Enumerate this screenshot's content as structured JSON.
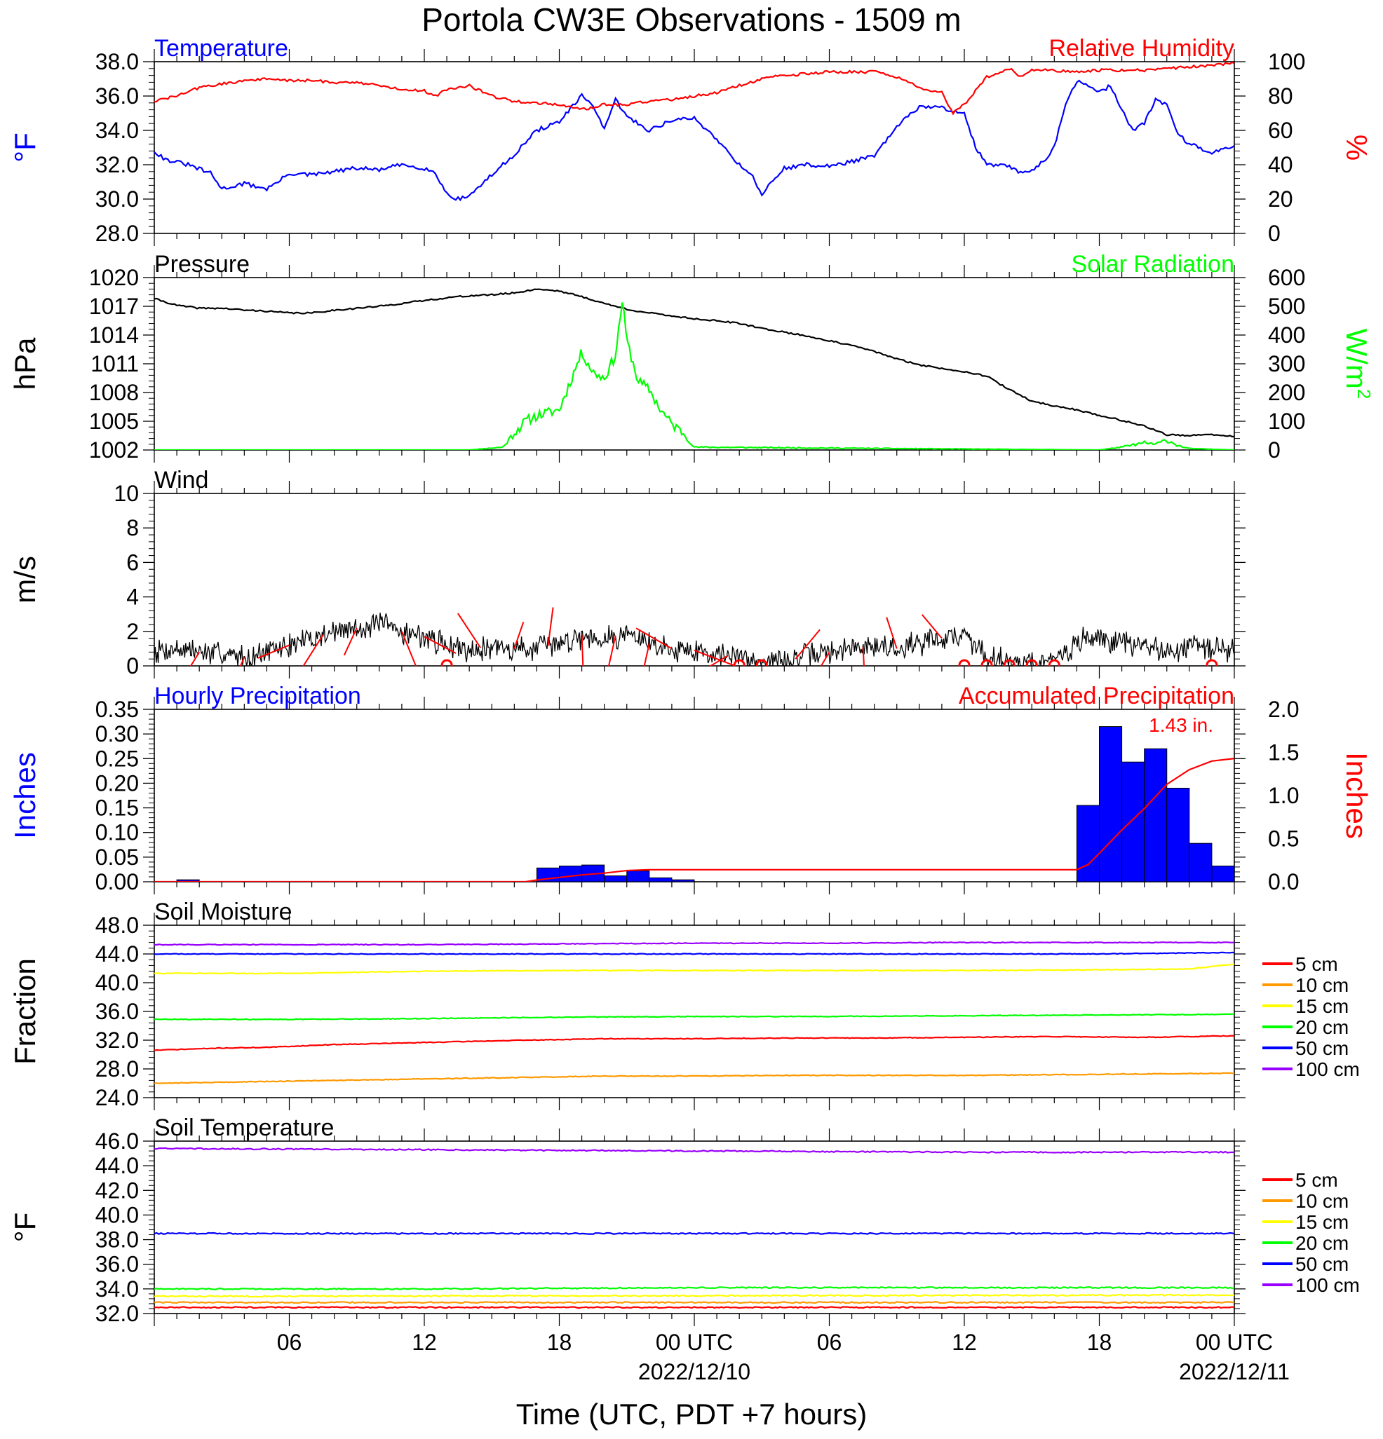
{
  "title": "Portola CW3E Observations - 1509 m",
  "xlabel": "Time (UTC, PDT +7 hours)",
  "x_axis": {
    "range_hours": [
      0,
      48
    ],
    "tick_hours": [
      6,
      12,
      18,
      24,
      30,
      36,
      42,
      48
    ],
    "tick_labels": [
      "06",
      "12",
      "18",
      "00 UTC",
      "06",
      "12",
      "18",
      "00 UTC"
    ],
    "date_labels": [
      {
        "hour": 24,
        "text": "2022/12/10"
      },
      {
        "hour": 48,
        "text": "2022/12/11"
      }
    ]
  },
  "colors": {
    "blue": "#0000ff",
    "red": "#ff0000",
    "green": "#00ff00",
    "black": "#000000",
    "orange": "#ff9900",
    "yellow": "#ffff00",
    "purple": "#9900ff"
  },
  "chart_data": [
    {
      "type": "line",
      "panel": "temperature-humidity",
      "left_title": "Temperature",
      "right_title": "Relative Humidity",
      "ylabel": "°F",
      "ylabel_right": "%",
      "ylim": [
        28,
        38
      ],
      "ylim_right": [
        0,
        100
      ],
      "yticks": [
        "28.0",
        "30.0",
        "32.0",
        "34.0",
        "36.0",
        "38.0"
      ],
      "yticks_right": [
        "0",
        "20",
        "40",
        "60",
        "80",
        "100"
      ],
      "series": [
        {
          "name": "Temperature",
          "color": "#0000ff",
          "axis": "left",
          "x": [
            0,
            0.5,
            1.5,
            2.5,
            3,
            4,
            5,
            5.5,
            6,
            7,
            8,
            9,
            10,
            11,
            12,
            12.5,
            13,
            13.5,
            14,
            15,
            16,
            17,
            18,
            19,
            19.5,
            20,
            20.5,
            21,
            22,
            23,
            24,
            25,
            26,
            26.5,
            27,
            28,
            29,
            30,
            31,
            32,
            33,
            34,
            35,
            36,
            36.5,
            37,
            38,
            38.5,
            39,
            39.5,
            40,
            40.5,
            41,
            42,
            42.5,
            43,
            43.5,
            44,
            44.5,
            45,
            45.5,
            46,
            46.5,
            47,
            47.5,
            48
          ],
          "y": [
            32.8,
            32.3,
            32.0,
            31.5,
            30.6,
            30.9,
            30.6,
            31.0,
            31.5,
            31.4,
            31.6,
            31.8,
            31.7,
            32.0,
            31.8,
            31.5,
            30.3,
            30.0,
            30.2,
            31.4,
            32.6,
            34.0,
            34.5,
            36.0,
            35.5,
            34.0,
            35.8,
            34.8,
            34.0,
            34.6,
            34.7,
            33.5,
            32.0,
            31.5,
            30.3,
            31.8,
            32.0,
            31.9,
            32.2,
            32.5,
            34.2,
            35.4,
            35.3,
            35.0,
            33.0,
            32.0,
            31.9,
            31.5,
            31.7,
            32.2,
            33.0,
            35.5,
            36.9,
            36.2,
            36.6,
            35.2,
            34.0,
            34.4,
            35.8,
            35.5,
            33.8,
            33.2,
            33.0,
            32.6,
            33.0,
            33.1
          ]
        },
        {
          "name": "Relative Humidity",
          "color": "#ff0000",
          "axis": "right",
          "x": [
            0,
            1,
            2,
            3,
            4,
            5,
            6,
            7,
            8,
            9,
            10,
            11,
            12,
            12.5,
            13,
            14,
            15,
            16,
            17,
            18,
            19,
            20,
            21,
            22,
            23,
            24,
            25,
            26,
            27,
            28,
            29,
            30,
            31,
            32,
            33,
            34,
            35,
            35.5,
            36,
            37,
            38,
            38.5,
            39,
            40,
            41,
            42,
            43,
            44,
            45,
            46,
            47,
            48
          ],
          "y": [
            77,
            80,
            85,
            87,
            89,
            90,
            89,
            89,
            88,
            88,
            86,
            84,
            83,
            80,
            84,
            86,
            80,
            77,
            76,
            75,
            72,
            75,
            75,
            77,
            78,
            80,
            82,
            86,
            90,
            92,
            93,
            94,
            94,
            94,
            91,
            85,
            82,
            70,
            75,
            91,
            96,
            91,
            95,
            95,
            94,
            95,
            95,
            95,
            96,
            97,
            98,
            99
          ]
        }
      ]
    },
    {
      "type": "line",
      "panel": "pressure-solar",
      "left_title": "Pressure",
      "right_title": "Solar Radiation",
      "ylabel": "hPa",
      "ylabel_right": "W/m",
      "ylabel_right_sup": "2",
      "ylim": [
        1002,
        1020
      ],
      "ylim_right": [
        0,
        600
      ],
      "yticks": [
        "1002",
        "1005",
        "1008",
        "1011",
        "1014",
        "1017",
        "1020"
      ],
      "yticks_right": [
        "0",
        "100",
        "200",
        "300",
        "400",
        "500",
        "600"
      ],
      "series": [
        {
          "name": "Pressure",
          "color": "#000000",
          "axis": "left",
          "x": [
            0,
            1,
            2,
            3,
            4,
            5,
            6,
            7,
            8,
            9,
            10,
            11,
            12,
            13,
            14,
            15,
            16,
            17,
            18,
            19,
            20,
            21,
            22,
            23,
            24,
            25,
            26,
            27,
            28,
            29,
            30,
            31,
            32,
            33,
            34,
            35,
            36,
            37,
            38,
            39,
            40,
            41,
            42,
            43,
            44,
            45,
            46,
            47,
            48
          ],
          "y": [
            1017.8,
            1017.1,
            1016.8,
            1016.8,
            1016.6,
            1016.5,
            1016.3,
            1016.3,
            1016.6,
            1016.8,
            1017.0,
            1017.3,
            1017.6,
            1017.9,
            1018.1,
            1018.2,
            1018.4,
            1018.8,
            1018.6,
            1018.0,
            1017.3,
            1016.7,
            1016.3,
            1016.0,
            1015.7,
            1015.5,
            1015.2,
            1014.7,
            1014.3,
            1013.9,
            1013.4,
            1012.9,
            1012.3,
            1011.5,
            1010.9,
            1010.5,
            1010.2,
            1009.7,
            1008.3,
            1007.1,
            1006.6,
            1006.2,
            1005.6,
            1005.1,
            1004.5,
            1003.6,
            1003.5,
            1003.6,
            1003.4
          ]
        },
        {
          "name": "Solar Radiation",
          "color": "#00ff00",
          "axis": "right",
          "x": [
            0,
            14,
            15.5,
            16,
            16.5,
            17,
            17.5,
            18,
            18.5,
            19,
            19.5,
            20,
            20.5,
            20.8,
            21,
            21.5,
            22,
            22.5,
            23,
            23.5,
            24,
            42,
            43,
            44,
            44.5,
            45,
            45.5,
            46,
            48
          ],
          "y": [
            0,
            0,
            10,
            60,
            100,
            120,
            130,
            140,
            240,
            340,
            270,
            250,
            330,
            520,
            380,
            240,
            210,
            140,
            90,
            60,
            10,
            0,
            10,
            25,
            20,
            35,
            15,
            5,
            0
          ]
        }
      ]
    },
    {
      "type": "line",
      "panel": "wind",
      "left_title": "Wind",
      "ylabel": "m/s",
      "ylim": [
        0,
        10
      ],
      "yticks": [
        "0",
        "2",
        "4",
        "6",
        "8",
        "10"
      ],
      "series": [
        {
          "name": "Wind",
          "color": "#000000",
          "axis": "left",
          "x": [
            0,
            1,
            2,
            3,
            4,
            5,
            6,
            7,
            8,
            9,
            10,
            11,
            12,
            13,
            14,
            15,
            16,
            17,
            18,
            19,
            20,
            21,
            22,
            23,
            24,
            25,
            26,
            27,
            28,
            29,
            30,
            31,
            32,
            33,
            34,
            35,
            36,
            37,
            38,
            39,
            40,
            41,
            42,
            43,
            44,
            45,
            46,
            47,
            48
          ],
          "y": [
            0.9,
            1.0,
            0.8,
            0.7,
            0.5,
            0.8,
            1.2,
            1.6,
            2.0,
            2.2,
            2.4,
            2.0,
            1.7,
            1.2,
            1.0,
            1.1,
            1.0,
            1.0,
            1.3,
            1.8,
            1.6,
            1.9,
            1.3,
            1.0,
            0.9,
            0.7,
            0.5,
            0.3,
            0.2,
            0.6,
            0.8,
            1.0,
            1.2,
            1.0,
            1.4,
            1.6,
            1.8,
            0.6,
            0.3,
            0.2,
            0.2,
            1.4,
            1.6,
            1.3,
            1.2,
            0.8,
            1.2,
            1.0,
            0.9
          ]
        }
      ],
      "wind_barb_hours": [
        2,
        4,
        6,
        7.5,
        9,
        11,
        12,
        14.5,
        16,
        17.5,
        19,
        20.5,
        22,
        23,
        24,
        25.5,
        28.5,
        30,
        31.5,
        33,
        35
      ],
      "calm_hours": [
        13,
        26,
        27,
        36,
        37,
        38,
        39,
        40,
        47
      ]
    },
    {
      "type": "bar",
      "panel": "precipitation",
      "left_title": "Hourly Precipitation",
      "right_title": "Accumulated Precipitation",
      "annotation": "1.43 in.",
      "ylabel": "Inches",
      "ylabel_right": "Inches",
      "ylim": [
        0,
        0.35
      ],
      "ylim_right": [
        0,
        2.0
      ],
      "yticks": [
        "0.00",
        "0.05",
        "0.10",
        "0.15",
        "0.20",
        "0.25",
        "0.30",
        "0.35"
      ],
      "yticks_right": [
        "0.0",
        "0.5",
        "1.0",
        "1.5",
        "2.0"
      ],
      "bars": {
        "name": "Hourly Precipitation",
        "color": "#0000ff",
        "start_hours": [
          1,
          17,
          18,
          19,
          20,
          21,
          22,
          23,
          41,
          42,
          43,
          44,
          45,
          46,
          47
        ],
        "values": [
          0.004,
          0.028,
          0.032,
          0.034,
          0.012,
          0.022,
          0.008,
          0.004,
          0.155,
          0.315,
          0.243,
          0.27,
          0.19,
          0.078,
          0.032
        ]
      },
      "series": [
        {
          "name": "Accumulated Precipitation",
          "color": "#ff0000",
          "axis": "right",
          "x": [
            0,
            16.5,
            17,
            18,
            19,
            20,
            21,
            22,
            23,
            24,
            41,
            41.5,
            42,
            43,
            44,
            45,
            46,
            47,
            48
          ],
          "y": [
            0.0,
            0.0,
            0.02,
            0.05,
            0.08,
            0.1,
            0.13,
            0.14,
            0.14,
            0.14,
            0.14,
            0.2,
            0.33,
            0.6,
            0.85,
            1.13,
            1.3,
            1.4,
            1.43
          ]
        }
      ]
    },
    {
      "type": "line",
      "panel": "soil-moisture",
      "left_title": "Soil Moisture",
      "ylabel": "Fraction",
      "ylim": [
        24,
        48
      ],
      "yticks": [
        "24.0",
        "28.0",
        "32.0",
        "36.0",
        "40.0",
        "44.0",
        "48.0"
      ],
      "legend": [
        "5 cm",
        "10 cm",
        "15 cm",
        "20 cm",
        "50 cm",
        "100 cm"
      ],
      "series": [
        {
          "name": "5 cm",
          "color": "#ff0000",
          "x": [
            0,
            3,
            5,
            8,
            11,
            15,
            20,
            24,
            28,
            32,
            36,
            40,
            44,
            48
          ],
          "y": [
            30.6,
            30.9,
            31.0,
            31.4,
            31.6,
            31.9,
            32.2,
            32.2,
            32.3,
            32.3,
            32.4,
            32.5,
            32.4,
            32.6
          ]
        },
        {
          "name": "10 cm",
          "color": "#ff9900",
          "x": [
            0,
            4,
            8,
            12,
            16,
            20,
            24,
            28,
            32,
            36,
            40,
            44,
            48
          ],
          "y": [
            26.0,
            26.2,
            26.4,
            26.6,
            26.8,
            27.0,
            27.0,
            27.1,
            27.1,
            27.1,
            27.2,
            27.3,
            27.4
          ]
        },
        {
          "name": "15 cm",
          "color": "#ffff00",
          "x": [
            0,
            6,
            12,
            18,
            24,
            30,
            36,
            42,
            46,
            48
          ],
          "y": [
            41.3,
            41.3,
            41.6,
            41.7,
            41.7,
            41.7,
            41.7,
            41.8,
            41.9,
            42.6
          ]
        },
        {
          "name": "20 cm",
          "color": "#00ff00",
          "x": [
            0,
            6,
            12,
            18,
            24,
            30,
            36,
            42,
            48
          ],
          "y": [
            34.9,
            34.9,
            35.0,
            35.2,
            35.3,
            35.3,
            35.4,
            35.5,
            35.6
          ]
        },
        {
          "name": "50 cm",
          "color": "#0000ff",
          "x": [
            0,
            6,
            12,
            18,
            24,
            30,
            36,
            42,
            48
          ],
          "y": [
            44.0,
            44.0,
            44.0,
            44.0,
            44.0,
            44.0,
            44.0,
            44.0,
            44.2
          ]
        },
        {
          "name": "100 cm",
          "color": "#9900ff",
          "x": [
            0,
            6,
            12,
            18,
            24,
            30,
            36,
            42,
            48
          ],
          "y": [
            45.3,
            45.3,
            45.3,
            45.4,
            45.5,
            45.5,
            45.6,
            45.6,
            45.6
          ]
        }
      ]
    },
    {
      "type": "line",
      "panel": "soil-temperature",
      "left_title": "Soil Temperature",
      "ylabel": "°F",
      "ylim": [
        32,
        46
      ],
      "yticks": [
        "32.0",
        "34.0",
        "36.0",
        "38.0",
        "40.0",
        "42.0",
        "44.0",
        "46.0"
      ],
      "legend": [
        "5 cm",
        "10 cm",
        "15 cm",
        "20 cm",
        "50 cm",
        "100 cm"
      ],
      "series": [
        {
          "name": "5 cm",
          "color": "#ff0000",
          "x": [
            0,
            48
          ],
          "y": [
            32.5,
            32.5
          ]
        },
        {
          "name": "10 cm",
          "color": "#ff9900",
          "x": [
            0,
            48
          ],
          "y": [
            32.9,
            32.9
          ]
        },
        {
          "name": "15 cm",
          "color": "#ffff00",
          "x": [
            0,
            48
          ],
          "y": [
            33.4,
            33.5
          ]
        },
        {
          "name": "20 cm",
          "color": "#00ff00",
          "x": [
            0,
            12,
            24,
            36,
            48
          ],
          "y": [
            34.0,
            34.0,
            34.1,
            34.1,
            34.1
          ]
        },
        {
          "name": "50 cm",
          "color": "#0000ff",
          "x": [
            0,
            48
          ],
          "y": [
            38.5,
            38.5
          ]
        },
        {
          "name": "100 cm",
          "color": "#9900ff",
          "x": [
            0,
            12,
            24,
            36,
            48
          ],
          "y": [
            45.4,
            45.3,
            45.2,
            45.1,
            45.1
          ]
        }
      ]
    }
  ]
}
